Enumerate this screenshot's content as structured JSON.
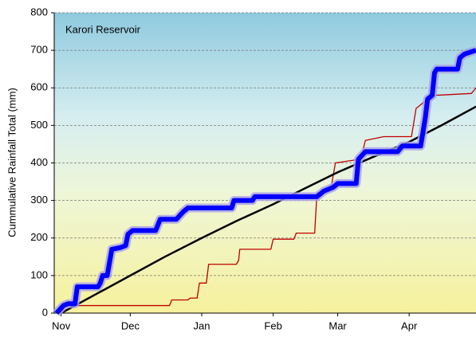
{
  "chart_data": {
    "type": "line",
    "title": "Karori Reservoir",
    "y_label": "Cummulative Rainfall Total (mm)",
    "xlim": [
      -3,
      180
    ],
    "ylim": [
      0,
      800
    ],
    "xticks": [
      {
        "value": 0,
        "label": "Nov"
      },
      {
        "value": 30,
        "label": "Dec"
      },
      {
        "value": 61,
        "label": "Jan"
      },
      {
        "value": 92,
        "label": "Feb"
      },
      {
        "value": 120,
        "label": "Mar"
      },
      {
        "value": 151,
        "label": "Apr"
      }
    ],
    "yticks": [
      0,
      100,
      200,
      300,
      400,
      500,
      600,
      700,
      800
    ],
    "grid": true,
    "series": [
      {
        "color": "#c00000",
        "width": 1.3,
        "x": [
          0,
          2,
          47,
          48,
          55,
          56,
          59,
          60,
          63,
          64,
          76,
          77,
          77.5,
          91,
          92,
          101,
          102,
          110,
          111,
          117,
          119,
          130,
          132,
          140,
          152,
          154,
          157,
          162,
          178,
          180
        ],
        "values": [
          0,
          20,
          20,
          35,
          35,
          40,
          40,
          80,
          80,
          130,
          130,
          140,
          170,
          170,
          197,
          197,
          213,
          213,
          320,
          330,
          400,
          410,
          460,
          470,
          470,
          545,
          560,
          580,
          585,
          600
        ]
      },
      {
        "color": "#000000",
        "width": 2.5,
        "x": [
          0,
          15,
          30,
          45,
          61,
          76,
          92,
          106,
          120,
          135,
          151,
          165,
          180
        ],
        "values": [
          0,
          50,
          100,
          150,
          200,
          245,
          290,
          333,
          375,
          415,
          456,
          500,
          550
        ]
      },
      {
        "color": "#0000ff",
        "width": 6,
        "glow": "#a9a0e8",
        "x": [
          -2,
          1,
          3,
          6,
          7,
          16,
          17,
          18,
          20,
          22,
          26,
          28,
          29,
          31,
          41,
          43,
          50,
          53,
          55,
          74,
          75,
          83,
          84,
          111,
          114,
          118,
          120,
          128,
          129,
          132,
          146,
          148,
          156,
          158,
          159,
          161,
          162,
          163,
          172,
          173,
          175,
          180
        ],
        "values": [
          0,
          20,
          25,
          25,
          70,
          70,
          80,
          100,
          100,
          170,
          175,
          180,
          210,
          220,
          220,
          250,
          250,
          270,
          280,
          280,
          300,
          300,
          310,
          310,
          325,
          335,
          345,
          345,
          410,
          430,
          430,
          445,
          445,
          520,
          570,
          580,
          640,
          650,
          650,
          680,
          690,
          700
        ]
      }
    ]
  }
}
